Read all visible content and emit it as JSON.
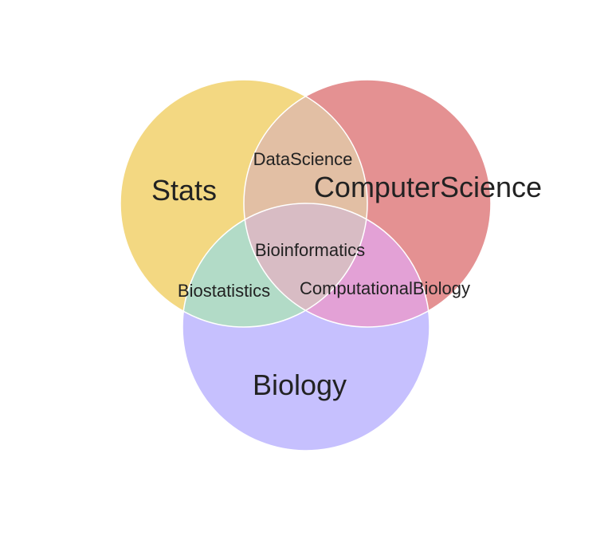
{
  "diagram": {
    "type": "venn-3",
    "sets": [
      {
        "key": "stats",
        "label": "Stats",
        "color": "#f3d882"
      },
      {
        "key": "cs",
        "label": "ComputerScience",
        "color": "#e49192"
      },
      {
        "key": "bio",
        "label": "Biology",
        "color": "#c6c0fe"
      }
    ],
    "intersections": [
      {
        "key": "stats_cs",
        "label": "DataScience",
        "color": "#e2bfa4"
      },
      {
        "key": "stats_bio",
        "label": "Biostatistics",
        "color": "#b2dbc7"
      },
      {
        "key": "cs_bio",
        "label": "ComputationalBiology",
        "color": "#e3a1d6"
      },
      {
        "key": "all",
        "label": "Bioinformatics",
        "color": "#d8bcc4"
      }
    ]
  }
}
